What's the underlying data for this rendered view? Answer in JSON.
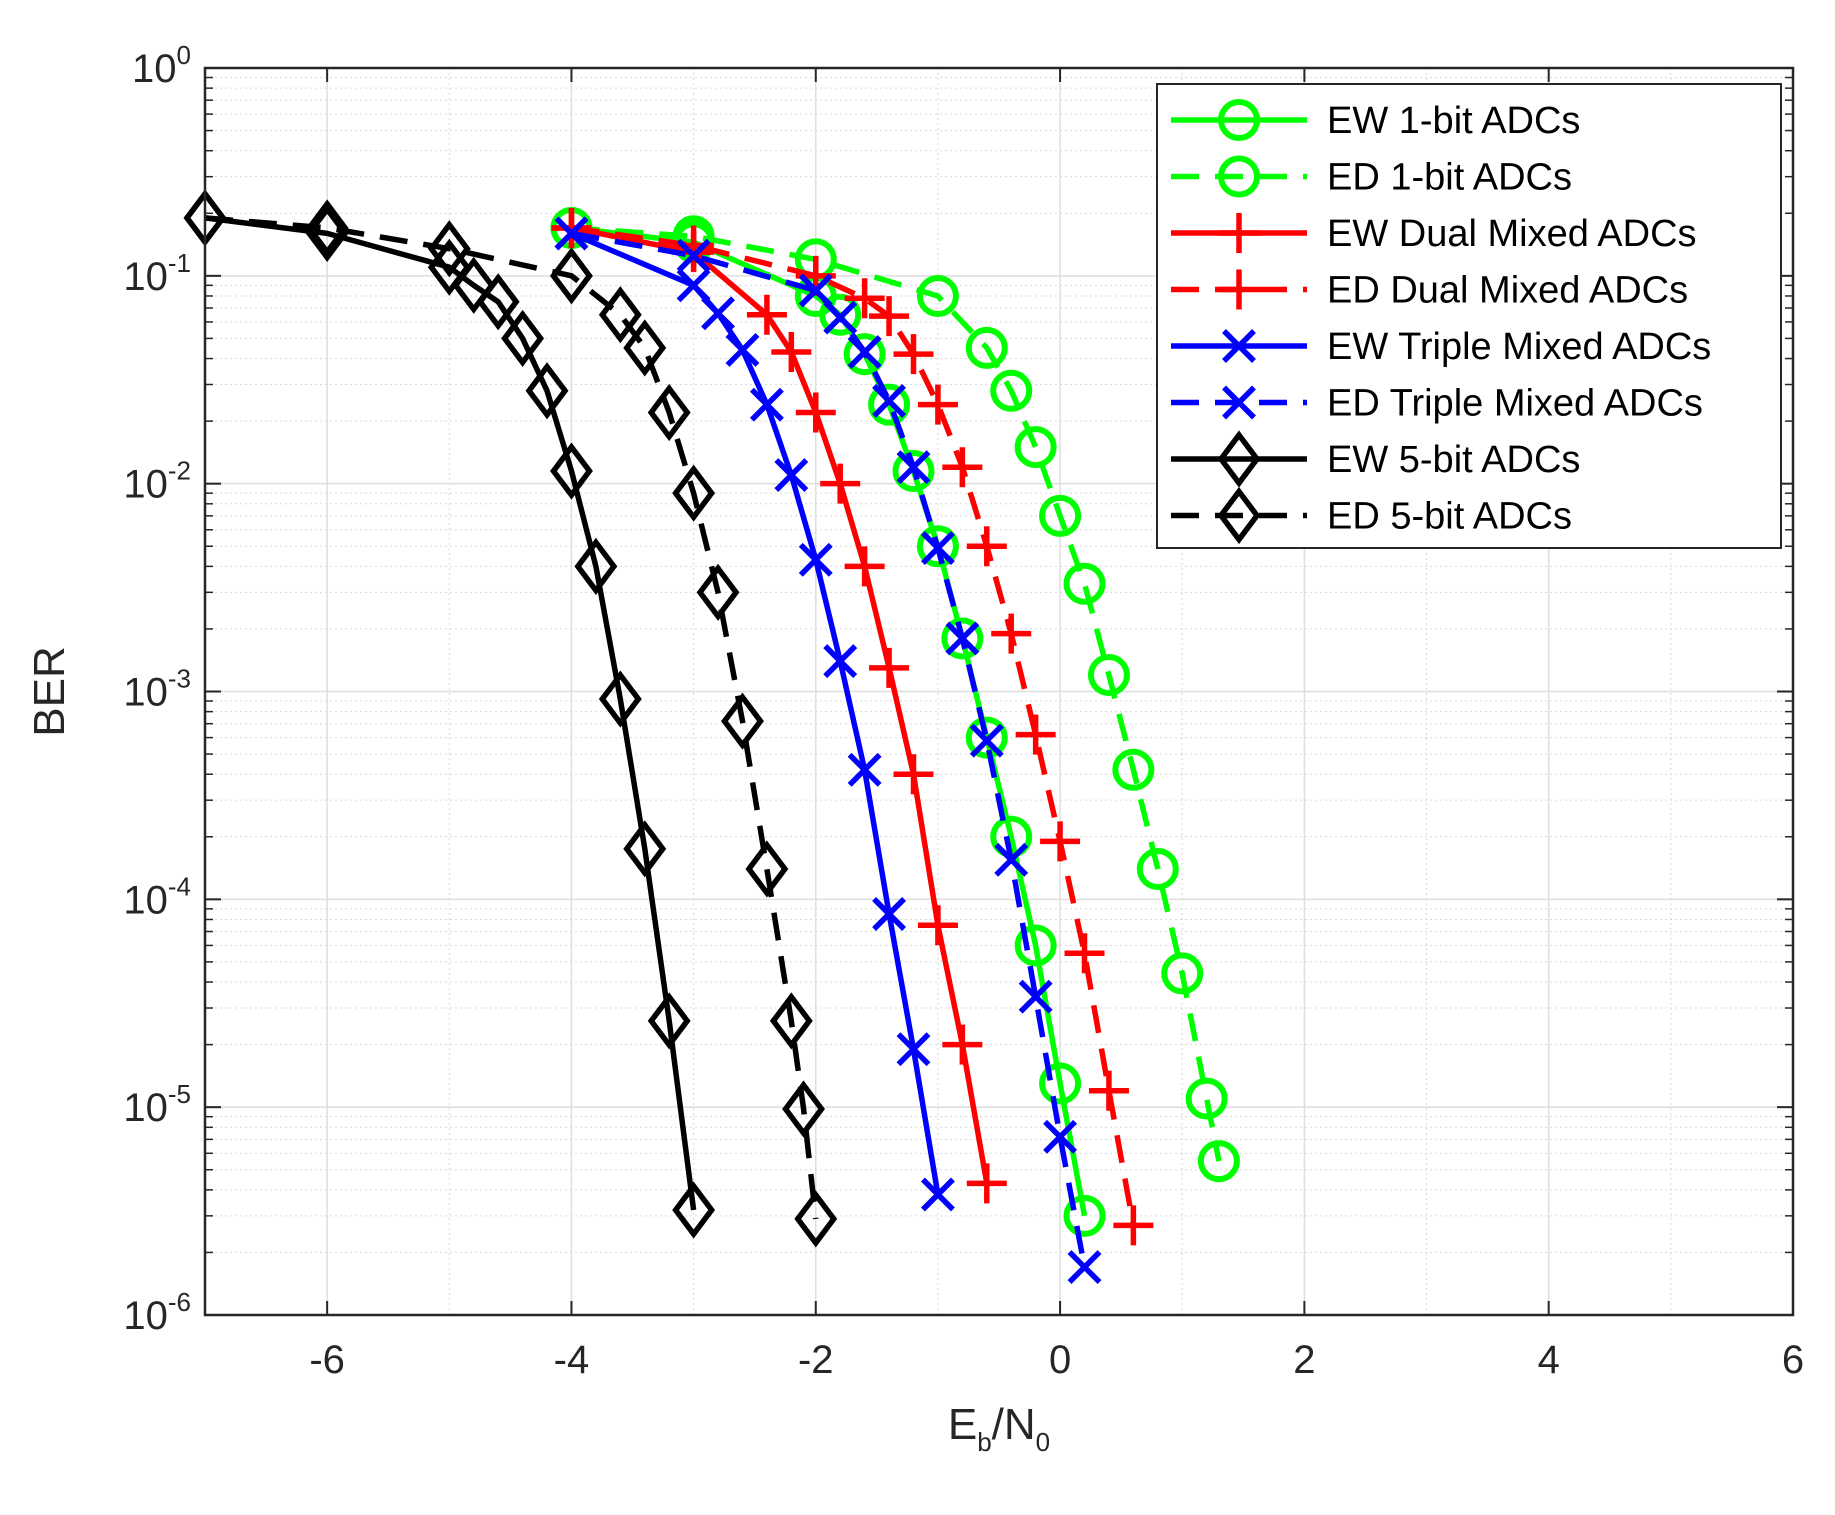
{
  "chart_data": {
    "type": "line",
    "title": "",
    "xlabel": {
      "main": "E",
      "sub1": "b",
      "sep": "/N",
      "sub2": "0"
    },
    "ylabel": "BER",
    "xlim": [
      -7,
      6
    ],
    "ylim": [
      1e-06,
      1
    ],
    "yscale": "log",
    "grid": true,
    "legend_position": "top-right",
    "xticks": [
      -6,
      -4,
      -2,
      0,
      2,
      4,
      6
    ],
    "yticks": [
      {
        "base": "10",
        "exp": "0",
        "value": 1
      },
      {
        "base": "10",
        "exp": "-1",
        "value": 0.1
      },
      {
        "base": "10",
        "exp": "-2",
        "value": 0.01
      },
      {
        "base": "10",
        "exp": "-3",
        "value": 0.001
      },
      {
        "base": "10",
        "exp": "-4",
        "value": 0.0001
      },
      {
        "base": "10",
        "exp": "-5",
        "value": 1e-05
      },
      {
        "base": "10",
        "exp": "-6",
        "value": 1e-06
      }
    ],
    "series": [
      {
        "name": "EW 1-bit ADCs",
        "color": "#00ff00",
        "dash": "solid",
        "marker": "circle",
        "x": [
          -4,
          -3,
          -2,
          -1.8,
          -1.6,
          -1.4,
          -1.2,
          -1,
          -0.8,
          -0.6,
          -0.4,
          -0.2,
          0,
          0.2
        ],
        "y": [
          0.17,
          0.145,
          0.08,
          0.065,
          0.042,
          0.024,
          0.0115,
          0.005,
          0.0018,
          0.0006,
          0.0002,
          6e-05,
          1.3e-05,
          3e-06
        ]
      },
      {
        "name": "ED 1-bit ADCs",
        "color": "#00ff00",
        "dash": "dashed",
        "marker": "circle",
        "x": [
          -4,
          -3,
          -2,
          -1,
          -0.6,
          -0.4,
          -0.2,
          0,
          0.2,
          0.4,
          0.6,
          0.8,
          1,
          1.2,
          1.3
        ],
        "y": [
          0.17,
          0.155,
          0.12,
          0.08,
          0.045,
          0.028,
          0.015,
          0.007,
          0.0033,
          0.0012,
          0.00042,
          0.00014,
          4.4e-05,
          1.1e-05,
          5.5e-06
        ]
      },
      {
        "name": "EW Dual Mixed ADCs",
        "color": "#ff0000",
        "dash": "solid",
        "marker": "plus",
        "x": [
          -4,
          -3,
          -2.4,
          -2.2,
          -2,
          -1.8,
          -1.6,
          -1.4,
          -1.2,
          -1,
          -0.8,
          -0.6
        ],
        "y": [
          0.17,
          0.13,
          0.065,
          0.043,
          0.022,
          0.01,
          0.004,
          0.0013,
          0.0004,
          7.5e-05,
          2e-05,
          4.3e-06
        ]
      },
      {
        "name": "ED Dual Mixed ADCs",
        "color": "#ff0000",
        "dash": "dashed",
        "marker": "plus",
        "x": [
          -4,
          -3,
          -2,
          -1.6,
          -1.4,
          -1.2,
          -1,
          -0.8,
          -0.6,
          -0.4,
          -0.2,
          0,
          0.2,
          0.4,
          0.6
        ],
        "y": [
          0.17,
          0.14,
          0.1,
          0.078,
          0.064,
          0.042,
          0.024,
          0.012,
          0.005,
          0.0019,
          0.00062,
          0.00019,
          5.5e-05,
          1.2e-05,
          2.7e-06
        ]
      },
      {
        "name": "EW Triple Mixed ADCs",
        "color": "#0000ff",
        "dash": "solid",
        "marker": "x",
        "x": [
          -4,
          -3,
          -2.8,
          -2.6,
          -2.4,
          -2.2,
          -2,
          -1.8,
          -1.6,
          -1.4,
          -1.2,
          -1
        ],
        "y": [
          0.16,
          0.09,
          0.066,
          0.044,
          0.024,
          0.011,
          0.0043,
          0.0014,
          0.00042,
          8.5e-05,
          1.9e-05,
          3.8e-06
        ]
      },
      {
        "name": "ED Triple Mixed ADCs",
        "color": "#0000ff",
        "dash": "dashed",
        "marker": "x",
        "x": [
          -4,
          -3,
          -2,
          -1.8,
          -1.6,
          -1.4,
          -1.2,
          -1,
          -0.8,
          -0.6,
          -0.4,
          -0.2,
          0,
          0.2
        ],
        "y": [
          0.16,
          0.125,
          0.085,
          0.063,
          0.043,
          0.025,
          0.012,
          0.0049,
          0.0018,
          0.00058,
          0.000155,
          3.4e-05,
          7.2e-06,
          1.7e-06
        ]
      },
      {
        "name": "EW 5-bit ADCs",
        "color": "#000000",
        "dash": "solid",
        "marker": "diamond",
        "x": [
          -7,
          -6,
          -5,
          -4.8,
          -4.6,
          -4.4,
          -4.2,
          -4,
          -3.8,
          -3.6,
          -3.4,
          -3.2,
          -3
        ],
        "y": [
          0.19,
          0.16,
          0.11,
          0.09,
          0.075,
          0.05,
          0.028,
          0.0115,
          0.004,
          0.00092,
          0.000175,
          2.6e-05,
          3.2e-06
        ]
      },
      {
        "name": "ED 5-bit ADCs",
        "color": "#000000",
        "dash": "dashed",
        "marker": "diamond",
        "x": [
          -7,
          -6,
          -5,
          -4,
          -3.6,
          -3.4,
          -3.2,
          -3,
          -2.8,
          -2.6,
          -2.4,
          -2.2,
          -2.1,
          -2
        ],
        "y": [
          0.19,
          0.17,
          0.135,
          0.1,
          0.065,
          0.045,
          0.022,
          0.009,
          0.003,
          0.00072,
          0.00014,
          2.6e-05,
          9.8e-06,
          2.9e-06
        ]
      }
    ]
  }
}
